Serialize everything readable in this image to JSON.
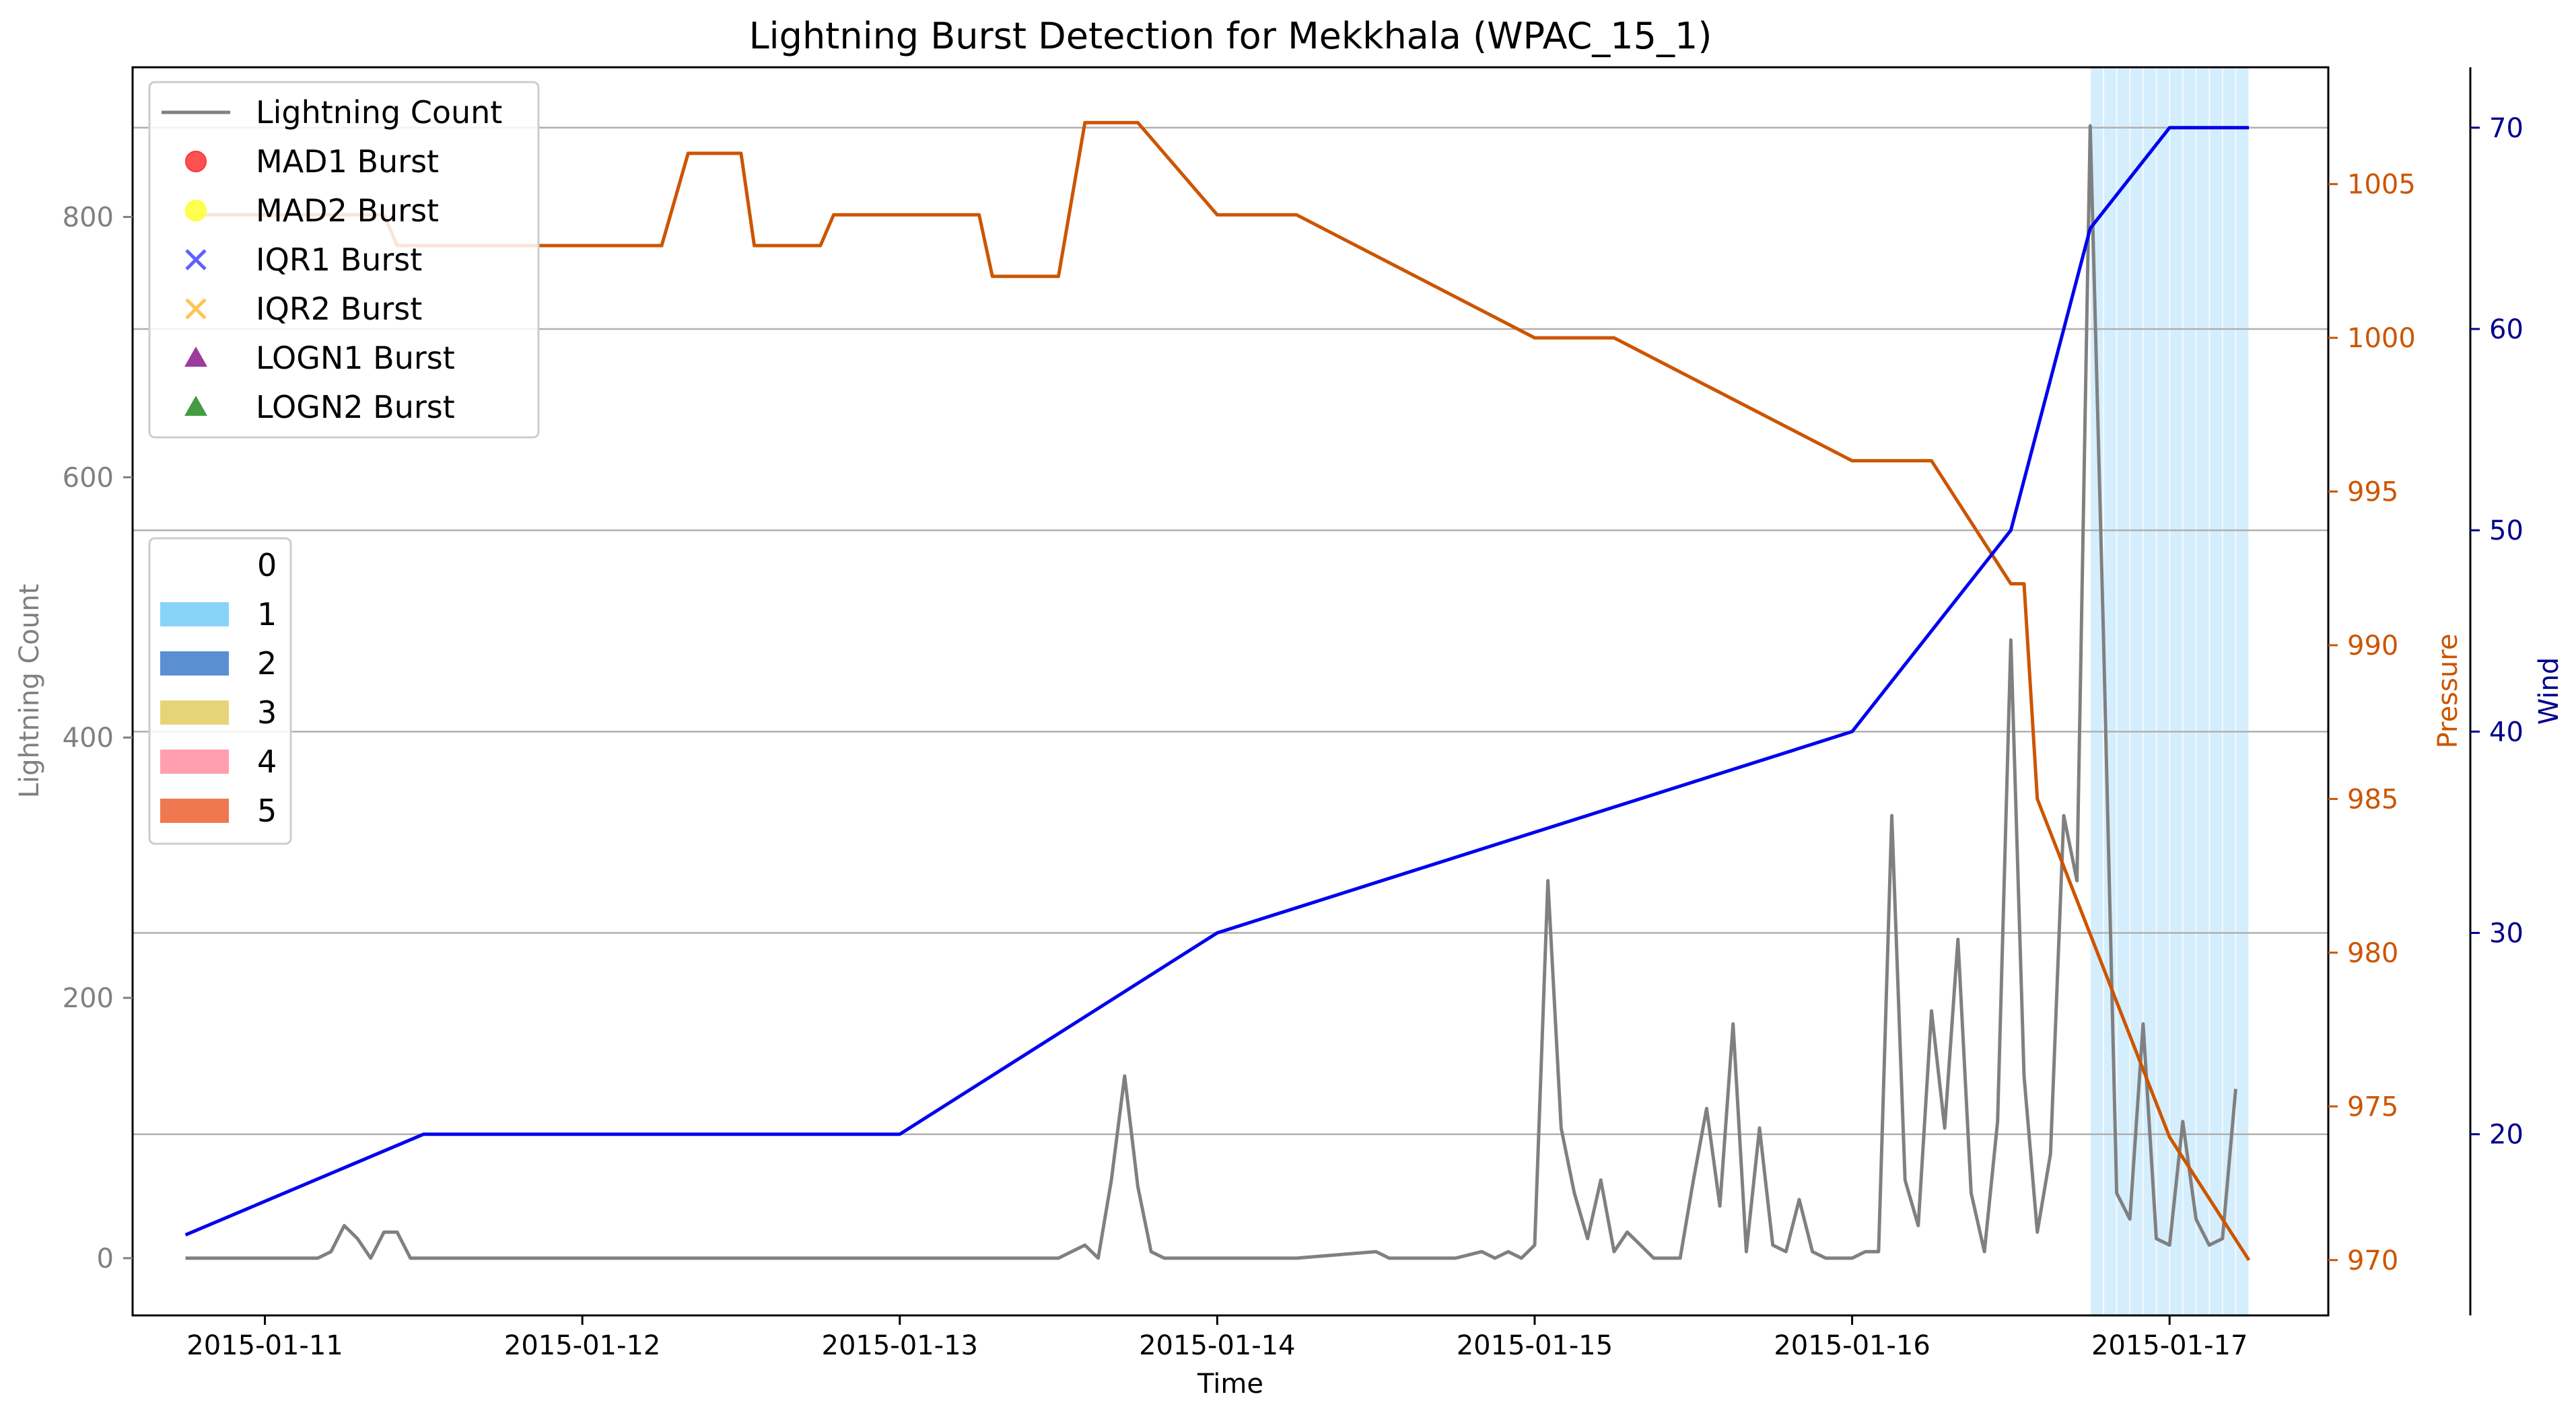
{
  "chart_data": {
    "type": "line",
    "title": "Lightning Burst Detection for Mekkhala (WPAC_15_1)",
    "xlabel": "Time",
    "ylabel_left": "Lightning Count",
    "ylabel_pressure": "Pressure",
    "ylabel_wind": "Wind",
    "x_ticks": [
      "2015-01-11",
      "2015-01-12",
      "2015-01-13",
      "2015-01-14",
      "2015-01-15",
      "2015-01-16",
      "2015-01-17"
    ],
    "xlim": [
      "2015-01-10T14:00",
      "2015-01-17T12:00"
    ],
    "y_left_ticks": [
      0,
      200,
      400,
      600,
      800
    ],
    "ylim_left": [
      -44,
      915
    ],
    "y_pressure_ticks": [
      970,
      975,
      980,
      985,
      990,
      995,
      1000,
      1005
    ],
    "ylim_pressure": [
      968.2,
      1008.8
    ],
    "y_wind_ticks": [
      20,
      30,
      40,
      50,
      60,
      70
    ],
    "ylim_wind": [
      11.0,
      73.0
    ],
    "grid": "horizontal",
    "colors": {
      "lightning": "#808080",
      "pressure": "#cc5500",
      "wind": "#0000ee",
      "shade": "#87cefa",
      "pressure_axis": "#cc5500",
      "wind_axis": "#00008b",
      "left_axis": "#808080"
    },
    "series": [
      {
        "name": "Lightning Count",
        "axis": "left",
        "x": [
          "2015-01-10T18:00",
          "2015-01-11T00:00",
          "2015-01-11T03:00",
          "2015-01-11T04:00",
          "2015-01-11T05:00",
          "2015-01-11T06:00",
          "2015-01-11T07:00",
          "2015-01-11T08:00",
          "2015-01-11T09:00",
          "2015-01-11T10:00",
          "2015-01-11T11:00",
          "2015-01-11T12:00",
          "2015-01-11T13:00",
          "2015-01-11T14:00",
          "2015-01-11T15:00",
          "2015-01-11T16:00",
          "2015-01-11T18:00",
          "2015-01-12T00:00",
          "2015-01-12T06:00",
          "2015-01-12T12:00",
          "2015-01-12T18:00",
          "2015-01-13T00:00",
          "2015-01-13T06:00",
          "2015-01-13T12:00",
          "2015-01-13T14:00",
          "2015-01-13T15:00",
          "2015-01-13T16:00",
          "2015-01-13T17:00",
          "2015-01-13T18:00",
          "2015-01-13T19:00",
          "2015-01-13T20:00",
          "2015-01-13T21:00",
          "2015-01-13T22:00",
          "2015-01-13T23:00",
          "2015-01-14T00:00",
          "2015-01-14T06:00",
          "2015-01-14T12:00",
          "2015-01-14T13:00",
          "2015-01-14T14:00",
          "2015-01-14T15:00",
          "2015-01-14T18:00",
          "2015-01-14T20:00",
          "2015-01-14T21:00",
          "2015-01-14T22:00",
          "2015-01-14T23:00",
          "2015-01-15T00:00",
          "2015-01-15T01:00",
          "2015-01-15T02:00",
          "2015-01-15T03:00",
          "2015-01-15T04:00",
          "2015-01-15T05:00",
          "2015-01-15T06:00",
          "2015-01-15T07:00",
          "2015-01-15T08:00",
          "2015-01-15T09:00",
          "2015-01-15T10:00",
          "2015-01-15T11:00",
          "2015-01-15T12:00",
          "2015-01-15T13:00",
          "2015-01-15T14:00",
          "2015-01-15T15:00",
          "2015-01-15T16:00",
          "2015-01-15T17:00",
          "2015-01-15T18:00",
          "2015-01-15T19:00",
          "2015-01-15T20:00",
          "2015-01-15T21:00",
          "2015-01-15T22:00",
          "2015-01-15T23:00",
          "2015-01-16T00:00",
          "2015-01-16T01:00",
          "2015-01-16T02:00",
          "2015-01-16T03:00",
          "2015-01-16T04:00",
          "2015-01-16T05:00",
          "2015-01-16T06:00",
          "2015-01-16T07:00",
          "2015-01-16T08:00",
          "2015-01-16T09:00",
          "2015-01-16T10:00",
          "2015-01-16T11:00",
          "2015-01-16T12:00",
          "2015-01-16T13:00",
          "2015-01-16T14:00",
          "2015-01-16T15:00",
          "2015-01-16T16:00",
          "2015-01-16T17:00",
          "2015-01-16T18:00",
          "2015-01-16T19:00",
          "2015-01-16T20:00",
          "2015-01-16T21:00",
          "2015-01-16T22:00",
          "2015-01-16T23:00",
          "2015-01-17T00:00",
          "2015-01-17T01:00",
          "2015-01-17T02:00",
          "2015-01-17T03:00",
          "2015-01-17T04:00",
          "2015-01-17T05:00"
        ],
        "values": [
          0,
          0,
          0,
          0,
          5,
          25,
          15,
          0,
          20,
          20,
          0,
          0,
          0,
          0,
          0,
          0,
          0,
          0,
          0,
          0,
          0,
          0,
          0,
          0,
          10,
          0,
          60,
          140,
          55,
          5,
          0,
          0,
          0,
          0,
          0,
          0,
          5,
          0,
          0,
          0,
          0,
          5,
          0,
          5,
          0,
          10,
          290,
          100,
          50,
          15,
          60,
          5,
          20,
          10,
          0,
          0,
          0,
          60,
          115,
          40,
          180,
          5,
          100,
          10,
          5,
          45,
          5,
          0,
          0,
          0,
          5,
          5,
          340,
          60,
          25,
          190,
          100,
          245,
          50,
          5,
          105,
          475,
          140,
          20,
          80,
          340,
          290,
          870,
          480,
          50,
          30,
          180,
          15,
          10,
          105,
          30,
          10,
          15,
          130
        ]
      },
      {
        "name": "Pressure",
        "axis": "pressure",
        "x": [
          "2015-01-10T18:00",
          "2015-01-11T09:00",
          "2015-01-11T10:00",
          "2015-01-12T06:00",
          "2015-01-12T08:00",
          "2015-01-12T12:00",
          "2015-01-12T13:00",
          "2015-01-12T18:00",
          "2015-01-12T19:00",
          "2015-01-13T06:00",
          "2015-01-13T07:00",
          "2015-01-13T12:00",
          "2015-01-13T14:00",
          "2015-01-13T18:00",
          "2015-01-14T00:00",
          "2015-01-14T06:00",
          "2015-01-15T00:00",
          "2015-01-15T06:00",
          "2015-01-16T00:00",
          "2015-01-16T06:00",
          "2015-01-16T12:00",
          "2015-01-16T13:00",
          "2015-01-16T14:00",
          "2015-01-17T00:00",
          "2015-01-17T06:00"
        ],
        "values": [
          1004,
          1004,
          1003,
          1003,
          1006,
          1006,
          1003,
          1003,
          1004,
          1004,
          1002,
          1002,
          1007,
          1007,
          1004,
          1004,
          1000,
          1000,
          996,
          996,
          992,
          992,
          985,
          974,
          970
        ]
      },
      {
        "name": "Wind",
        "axis": "wind",
        "x": [
          "2015-01-10T18:00",
          "2015-01-11T12:00",
          "2015-01-13T00:00",
          "2015-01-13T12:00",
          "2015-01-14T00:00",
          "2015-01-15T00:00",
          "2015-01-16T00:00",
          "2015-01-16T12:00",
          "2015-01-16T18:00",
          "2015-01-17T00:00",
          "2015-01-17T06:00"
        ],
        "values": [
          15,
          20,
          20,
          25,
          30,
          35,
          40,
          50,
          65,
          70,
          70
        ]
      }
    ],
    "shaded_region": {
      "category": 1,
      "start": "2015-01-16T18:00",
      "end": "2015-01-17T06:00"
    },
    "legend_markers": {
      "placement": "upper-left",
      "entries": [
        {
          "label": "Lightning Count",
          "marker": "line",
          "color": "#808080"
        },
        {
          "label": "MAD1 Burst",
          "marker": "circle",
          "color": "#ff3333"
        },
        {
          "label": "MAD2 Burst",
          "marker": "circle",
          "color": "#ffff33"
        },
        {
          "label": "IQR1 Burst",
          "marker": "x",
          "color": "#4444ff"
        },
        {
          "label": "IQR2 Burst",
          "marker": "x",
          "color": "#ffbb33"
        },
        {
          "label": "LOGN1 Burst",
          "marker": "triangle",
          "color": "#8b1a8b"
        },
        {
          "label": "LOGN2 Burst",
          "marker": "triangle",
          "color": "#228b22"
        }
      ]
    },
    "legend_categories": {
      "placement": "middle-left",
      "entries": [
        {
          "label": "0",
          "color": "#ffffff"
        },
        {
          "label": "1",
          "color": "#87d4f8"
        },
        {
          "label": "2",
          "color": "#5b8fd3"
        },
        {
          "label": "3",
          "color": "#e8d478"
        },
        {
          "label": "4",
          "color": "#ff9fb0"
        },
        {
          "label": "5",
          "color": "#f07850"
        }
      ]
    }
  }
}
